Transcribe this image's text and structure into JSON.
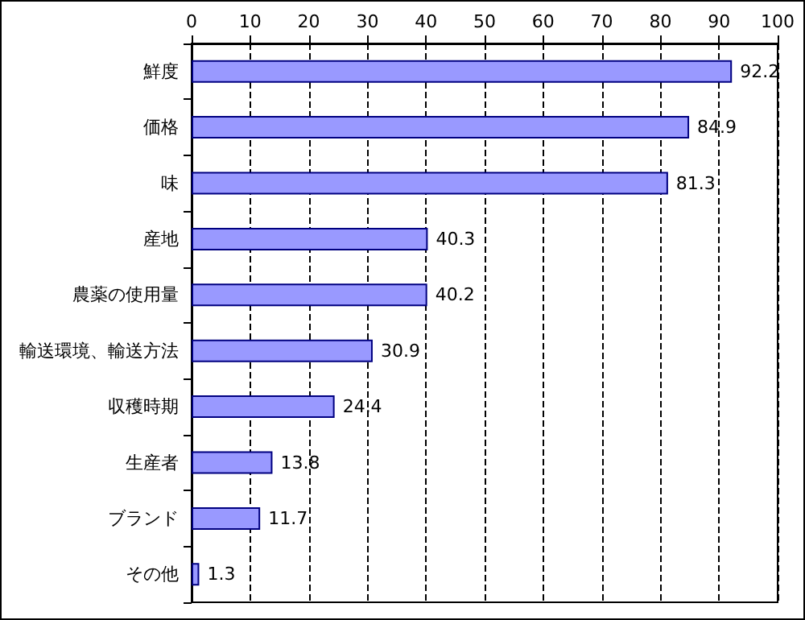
{
  "chart_data": {
    "type": "bar",
    "orientation": "horizontal",
    "categories": [
      "鮮度",
      "価格",
      "味",
      "産地",
      "農薬の使用量",
      "輸送環境、輸送方法",
      "収穫時期",
      "生産者",
      "ブランド",
      "その他"
    ],
    "values": [
      92.2,
      84.9,
      81.3,
      40.3,
      40.2,
      30.9,
      24.4,
      13.8,
      11.7,
      1.3
    ],
    "color": "#9999ff",
    "xlim": [
      0,
      100
    ],
    "xticks": [
      0,
      10,
      20,
      30,
      40,
      50,
      60,
      70,
      80,
      90,
      100
    ],
    "grid": "x",
    "data_labels": true
  }
}
